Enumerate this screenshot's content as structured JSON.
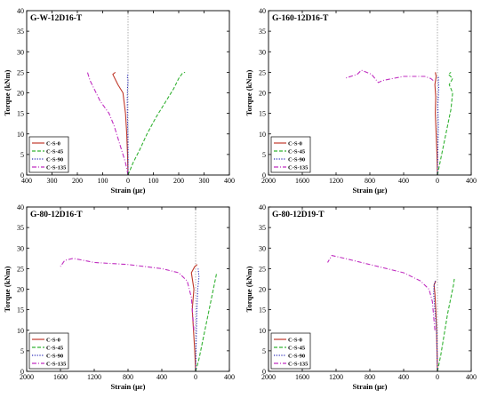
{
  "figure": {
    "panels": [
      {
        "id": "tl",
        "title": "G-W-12D16-T",
        "xlabel": "Strain (με)",
        "ylabel": "Torque (kNm)",
        "xlim": [
          -400,
          400
        ],
        "ylim": [
          0,
          40
        ],
        "xticks": [
          -400,
          -300,
          -200,
          -100,
          0,
          100,
          200,
          300,
          400
        ],
        "xtick_labels": [
          "400",
          "300",
          "200",
          "100",
          "0",
          "100",
          "200",
          "300",
          "400"
        ],
        "yticks": [
          0,
          5,
          10,
          15,
          20,
          25,
          30,
          35,
          40
        ],
        "legend_position": "lower-left"
      },
      {
        "id": "tr",
        "title": "G-160-12D16-T",
        "xlabel": "Strain (με)",
        "ylabel": "Torque (kNm)",
        "xlim": [
          -2000,
          400
        ],
        "ylim": [
          0,
          40
        ],
        "xticks": [
          -2000,
          -1600,
          -1200,
          -800,
          -400,
          0,
          400
        ],
        "xtick_labels": [
          "2000",
          "1600",
          "1200",
          "800",
          "400",
          "0",
          "400"
        ],
        "yticks": [
          0,
          5,
          10,
          15,
          20,
          25,
          30,
          35,
          40
        ],
        "legend_position": "lower-left"
      },
      {
        "id": "bl",
        "title": "G-80-12D16-T",
        "xlabel": "Strain (με)",
        "ylabel": "Torque (kNm)",
        "xlim": [
          -2000,
          400
        ],
        "ylim": [
          0,
          40
        ],
        "xticks": [
          -2000,
          -1600,
          -1200,
          -800,
          -400,
          0,
          400
        ],
        "xtick_labels": [
          "2000",
          "1600",
          "1200",
          "800",
          "400",
          "0",
          "400"
        ],
        "yticks": [
          0,
          5,
          10,
          15,
          20,
          25,
          30,
          35,
          40
        ],
        "legend_position": "lower-left"
      },
      {
        "id": "br",
        "title": "G-80-12D19-T",
        "xlabel": "Strain (με)",
        "ylabel": "Torque (kNm)",
        "xlim": [
          -2000,
          400
        ],
        "ylim": [
          0,
          40
        ],
        "xticks": [
          -2000,
          -1600,
          -1200,
          -800,
          -400,
          0,
          400
        ],
        "xtick_labels": [
          "2000",
          "1600",
          "1200",
          "800",
          "400",
          "0",
          "400"
        ],
        "yticks": [
          0,
          5,
          10,
          15,
          20,
          25,
          30,
          35,
          40
        ],
        "legend_position": "lower-left"
      }
    ]
  },
  "legend_items": [
    {
      "key": "c_s_0",
      "label": "C-S-0",
      "color": "#c0392b",
      "dash": "solid"
    },
    {
      "key": "c_s_45",
      "label": "C-S-45",
      "color": "#33b233",
      "dash": "dash"
    },
    {
      "key": "c_s_90",
      "label": "C-S-90",
      "color": "#2a2ab8",
      "dash": "dot"
    },
    {
      "key": "c_s_135",
      "label": "C-S-135",
      "color": "#c02ec0",
      "dash": "dashdot"
    }
  ],
  "chart_data": [
    {
      "type": "line",
      "title": "G-W-12D16-T",
      "xlabel": "Strain (μɛ)",
      "ylabel": "Torque (kNm)",
      "xlim": [
        -400,
        400
      ],
      "ylim": [
        0,
        40
      ],
      "series": [
        {
          "name": "C-S-0",
          "x": [
            0,
            -2,
            -5,
            -10,
            -20,
            -40,
            -60,
            -50
          ],
          "y": [
            0,
            5,
            10,
            15,
            20,
            22,
            24.5,
            25
          ]
        },
        {
          "name": "C-S-45",
          "x": [
            0,
            20,
            45,
            75,
            110,
            150,
            180,
            200,
            215,
            225
          ],
          "y": [
            0,
            3,
            6,
            10,
            14,
            18,
            21,
            23.5,
            24.8,
            25
          ]
        },
        {
          "name": "C-S-90",
          "x": [
            0,
            0,
            -2,
            -3,
            -2,
            0,
            -3,
            0
          ],
          "y": [
            0,
            8,
            14,
            18,
            21,
            23,
            24,
            24.5
          ]
        },
        {
          "name": "C-S-135",
          "x": [
            0,
            -10,
            -25,
            -40,
            -55,
            -75,
            -110,
            -150,
            -160
          ],
          "y": [
            0,
            3,
            6,
            9,
            12,
            15,
            18,
            23,
            25
          ]
        }
      ]
    },
    {
      "type": "line",
      "title": "G-160-12D16-T",
      "xlabel": "Strain (με)",
      "ylabel": "Torque (kNm)",
      "xlim": [
        -2000,
        400
      ],
      "ylim": [
        0,
        40
      ],
      "series": [
        {
          "name": "C-S-0",
          "x": [
            0,
            -5,
            -15,
            -25,
            -20,
            -30,
            -15,
            -25
          ],
          "y": [
            0,
            5,
            10,
            15,
            19,
            22,
            24,
            25
          ]
        },
        {
          "name": "C-S-45",
          "x": [
            0,
            40,
            80,
            120,
            160,
            180,
            140,
            180,
            130,
            160
          ],
          "y": [
            0,
            4,
            8,
            12,
            16,
            20,
            22,
            23.5,
            24.5,
            25
          ]
        },
        {
          "name": "C-S-90",
          "x": [
            0,
            5,
            10,
            5,
            15,
            10
          ],
          "y": [
            0,
            6,
            12,
            17,
            21,
            24
          ]
        },
        {
          "name": "C-S-135",
          "x": [
            -50,
            -80,
            -150,
            -400,
            -650,
            -700,
            -780,
            -900,
            -950,
            -1100
          ],
          "y": [
            23,
            23.5,
            24,
            24,
            23,
            22.5,
            24.5,
            25.5,
            24.5,
            23.5
          ]
        }
      ]
    },
    {
      "type": "line",
      "title": "G-80-12D16-T",
      "xlabel": "Strain (με)",
      "ylabel": "Torque (kNm)",
      "xlim": [
        -2000,
        400
      ],
      "ylim": [
        0,
        40
      ],
      "series": [
        {
          "name": "C-S-0",
          "x": [
            0,
            -10,
            -25,
            -40,
            -20,
            -50,
            -10,
            20
          ],
          "y": [
            0,
            5,
            10,
            15,
            20,
            24,
            25.5,
            26
          ]
        },
        {
          "name": "C-S-45",
          "x": [
            0,
            40,
            80,
            120,
            160,
            200,
            230,
            250
          ],
          "y": [
            0,
            3,
            7,
            11,
            15,
            19,
            22,
            24
          ]
        },
        {
          "name": "C-S-90",
          "x": [
            0,
            5,
            10,
            15,
            25,
            40,
            30
          ],
          "y": [
            0,
            5,
            10,
            15,
            20,
            23,
            25
          ]
        },
        {
          "name": "C-S-135",
          "x": [
            -20,
            -50,
            -100,
            -200,
            -400,
            -800,
            -1200,
            -1450,
            -1550,
            -1600
          ],
          "y": [
            10,
            18,
            22,
            24,
            25,
            26,
            26.5,
            27.5,
            27,
            25.5
          ]
        }
      ]
    },
    {
      "type": "line",
      "title": "G-80-12D19-T",
      "xlabel": "Strain (με)",
      "ylabel": "Torque (kNm)",
      "xlim": [
        -2000,
        400
      ],
      "ylim": [
        0,
        40
      ],
      "series": [
        {
          "name": "C-S-0",
          "x": [
            0,
            -5,
            -10,
            -20,
            -30,
            -40,
            -20
          ],
          "y": [
            0,
            5,
            10,
            15,
            19,
            21,
            22
          ]
        },
        {
          "name": "C-S-45",
          "x": [
            0,
            40,
            80,
            120,
            160,
            190,
            200
          ],
          "y": [
            0,
            4,
            9,
            14,
            18,
            21,
            22.5
          ]
        },
        {
          "name": "C-S-90",
          "x": [
            0,
            -5,
            -10,
            -30,
            -45,
            -40,
            -25
          ],
          "y": [
            0,
            5,
            10,
            15,
            19,
            21,
            22
          ]
        },
        {
          "name": "C-S-135",
          "x": [
            -30,
            -60,
            -100,
            -200,
            -400,
            -800,
            -1100,
            -1250,
            -1300
          ],
          "y": [
            10,
            17,
            20,
            22,
            24,
            26,
            27.5,
            28.2,
            26.5
          ]
        }
      ]
    }
  ]
}
